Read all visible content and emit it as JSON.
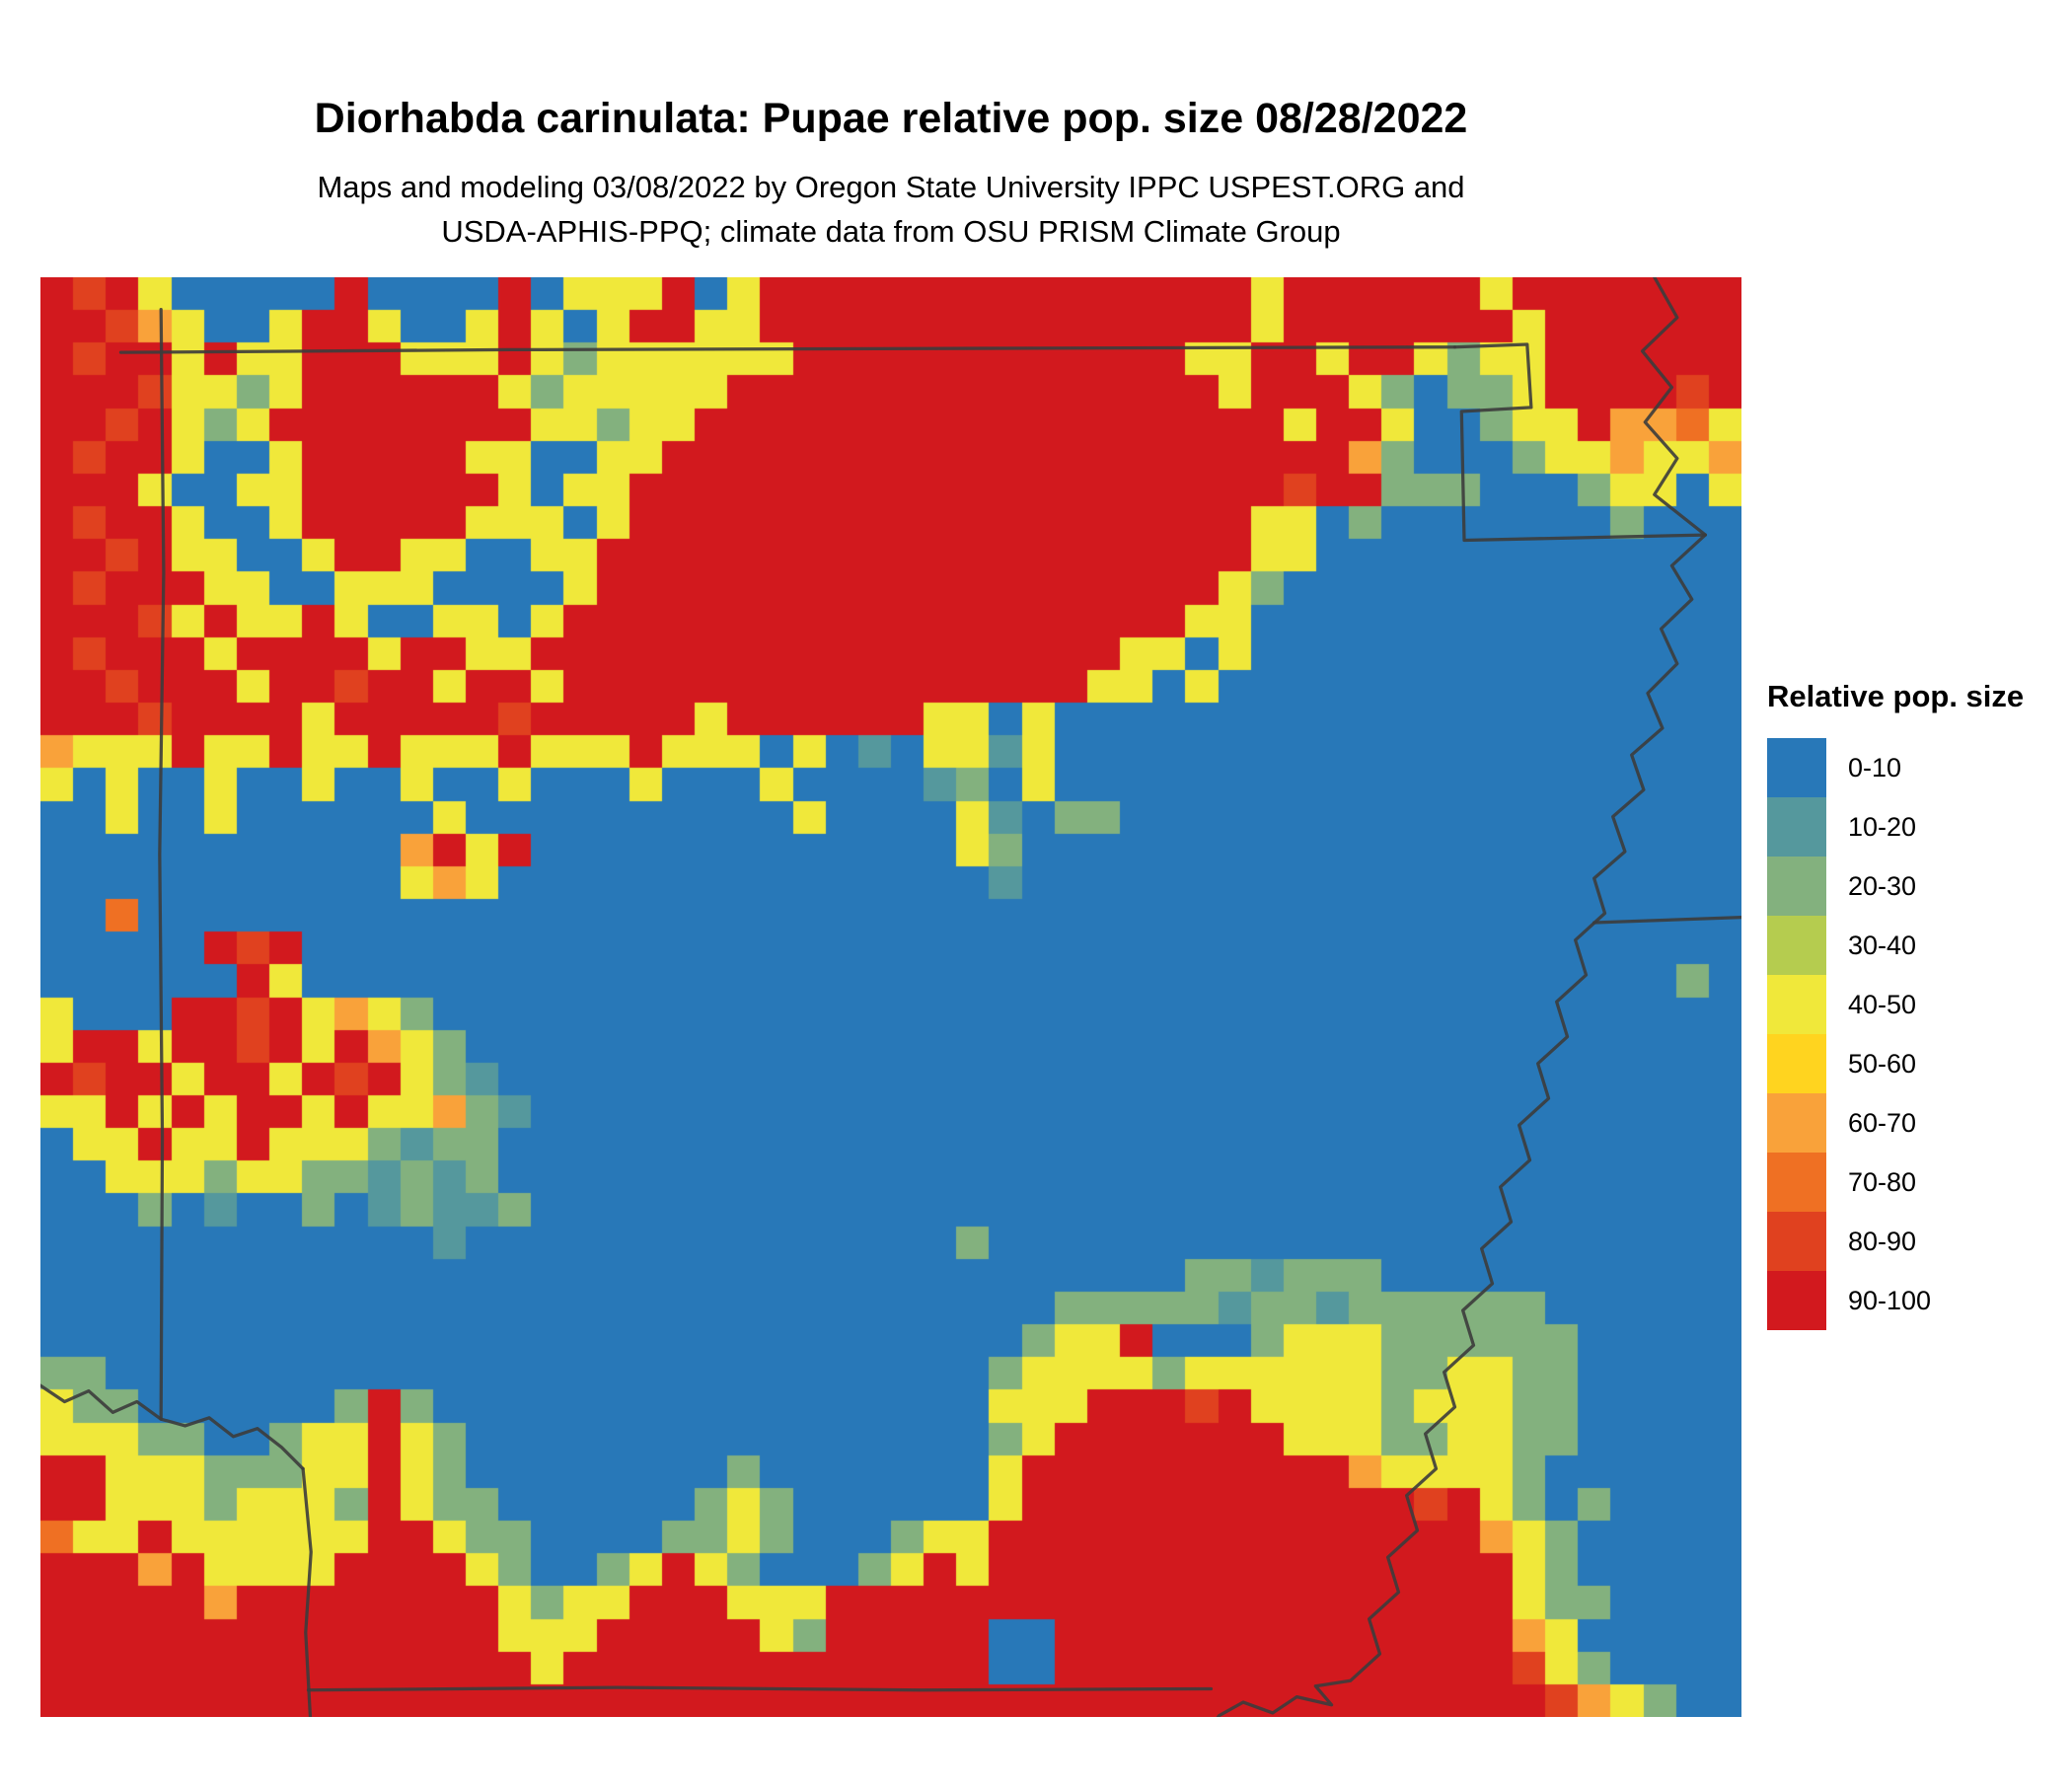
{
  "header": {
    "title": "Diorhabda carinulata: Pupae relative pop. size 08/28/2022",
    "subtitle_line1": "Maps and modeling 03/08/2022 by Oregon State University IPPC USPEST.ORG and",
    "subtitle_line2": "USDA-APHIS-PPQ; climate data from OSU PRISM Climate Group"
  },
  "map": {
    "border_color": "#3c3c3c",
    "grid": {
      "cols": 52,
      "palette": {
        "0": "#2878b8",
        "1": "#55989d",
        "2": "#83b17e",
        "3": "#b5cc4f",
        "4": "#f0e83a",
        "5": "#ffd41f",
        "6": "#f9a23a",
        "7": "#ef7023",
        "8": "#e0411f",
        "9": "#d2191e"
      },
      "rows": [
        "9894000009000090444904999999999999999499999949999999",
        "9986400499400494049944999999999999999499999994999999",
        "9899494499944494244444499999999999944994994244999999",
        "9998442499999942444449999999999999994999420224999989",
        "9989424999999994424499999999999999999949940024496674",
        "9899400499999440044999999999999999999999620002446446",
        "9994004499999940449999999999999999999989922200024404",
        "9899400499999444049999999999999999999440200000002000",
        "9989440049944004499999999999999999999440000000000000",
        "9899944004440000499999999999999999994200000000000000",
        "9998494494004404999999999999999999944000000000000000",
        "9899949999499449999999999999999994404000000000000000",
        "9989994998994994999999999999999944040000000000000000",
        "9998999949999989999949999994404000000000000000000000",
        "6444944944944494449444040104414000000000000000000000",
        "4040040040040040004000400001204000000000000000000000",
        "0040040000004000000000040000410220000000000000000000",
        "0000000000069490000000000000420000000000000000000000",
        "0000000000046400000000000000010000000000000000000000",
        "0070000000000000000000000000000000000000000000000000",
        "0000098900000000000000000000000000000000000000000000",
        "0000009400000000000000000000000000000000000000000020",
        "4000998946420000000000000000000000000000000000000000",
        "4994998949642000000000000000000000000000000000000000",
        "9899499498942100000000000000000000000000000000000000",
        "4494949949446210000000000000000000000000000000000000",
        "0449449444212200000000000000000000000000000000000000",
        "0044424422121200000000000000000000000000000000000000",
        "0002010020121120000000000000000000000000000000000000",
        "0000000000001000000000000000200000000000000000000000",
        "0000000000000000000000000000000000022122200000000000",
        "0000000000000000000000000000000222221221222222000000",
        "0000000000000000000000000000002449000244422222200000",
        "2200000000000000000000000000024444244444422442200000",
        "4220000002920000000000000000044499989444424442200000",
        "4442200244942000000000000000024999999944422442200000",
        "9944422244942000000002000000049999999999644442000000",
        "9944424442942200000024200000049999999999998942020000",
        "7449444444994220000224200024499999999999999964200000",
        "9996944449999420024942000249499999999999999994200000",
        "9999969999999942449994449999999999999999999994220000",
        "9999999999999944499999429999900999999999999996400000",
        "9999999999999994999999999999900999999999999998420000",
        "9999999999999999999999999999999999999999999999864200"
      ]
    },
    "borders": [
      [
        [
          60,
          56
        ],
        [
          350,
          54
        ],
        [
          700,
          53
        ],
        [
          1056,
          52
        ]
      ],
      [
        [
          1056,
          52
        ],
        [
          1110,
          50
        ],
        [
          1113,
          97
        ],
        [
          1061,
          100
        ],
        [
          1063,
          196
        ],
        [
          1243,
          192
        ]
      ],
      [
        [
          1205,
          0
        ],
        [
          1222,
          30
        ],
        [
          1196,
          55
        ],
        [
          1218,
          82
        ],
        [
          1198,
          108
        ],
        [
          1222,
          135
        ],
        [
          1205,
          162
        ],
        [
          1243,
          192
        ],
        [
          1218,
          215
        ],
        [
          1233,
          240
        ],
        [
          1210,
          262
        ],
        [
          1222,
          288
        ],
        [
          1200,
          310
        ],
        [
          1211,
          336
        ],
        [
          1188,
          356
        ],
        [
          1197,
          382
        ],
        [
          1174,
          402
        ],
        [
          1183,
          428
        ],
        [
          1160,
          448
        ],
        [
          1168,
          474
        ],
        [
          1146,
          494
        ],
        [
          1154,
          520
        ],
        [
          1132,
          540
        ],
        [
          1140,
          566
        ],
        [
          1118,
          586
        ],
        [
          1126,
          612
        ],
        [
          1104,
          632
        ],
        [
          1112,
          658
        ],
        [
          1090,
          678
        ],
        [
          1098,
          704
        ],
        [
          1076,
          724
        ],
        [
          1084,
          750
        ],
        [
          1062,
          770
        ],
        [
          1070,
          796
        ],
        [
          1048,
          816
        ],
        [
          1056,
          842
        ],
        [
          1034,
          862
        ],
        [
          1042,
          888
        ],
        [
          1020,
          908
        ],
        [
          1028,
          934
        ],
        [
          1006,
          954
        ],
        [
          1014,
          980
        ],
        [
          992,
          1000
        ],
        [
          1000,
          1026
        ],
        [
          978,
          1046
        ],
        [
          952,
          1050
        ],
        [
          964,
          1064
        ],
        [
          938,
          1058
        ],
        [
          920,
          1070
        ],
        [
          898,
          1062
        ],
        [
          880,
          1072
        ],
        [
          872,
          1083
        ]
      ],
      [
        [
          1160,
          481
        ],
        [
          1270,
          477
        ]
      ],
      [
        [
          90,
          24
        ],
        [
          92,
          220
        ],
        [
          89,
          430
        ],
        [
          91,
          640
        ],
        [
          90,
          851
        ]
      ],
      [
        [
          0,
          826
        ],
        [
          18,
          838
        ],
        [
          36,
          830
        ],
        [
          54,
          846
        ],
        [
          72,
          838
        ],
        [
          90,
          851
        ],
        [
          108,
          856
        ],
        [
          126,
          850
        ],
        [
          144,
          864
        ],
        [
          162,
          858
        ],
        [
          180,
          872
        ],
        [
          196,
          888
        ]
      ],
      [
        [
          196,
          888
        ],
        [
          202,
          950
        ],
        [
          198,
          1010
        ],
        [
          202,
          1083
        ]
      ],
      [
        [
          200,
          1053
        ],
        [
          430,
          1051
        ],
        [
          660,
          1053
        ],
        [
          874,
          1052
        ]
      ]
    ]
  },
  "legend": {
    "title": "Relative pop. size",
    "items": [
      {
        "label": "0-10",
        "color": "#2878b8"
      },
      {
        "label": "10-20",
        "color": "#55989d"
      },
      {
        "label": "20-30",
        "color": "#83b17e"
      },
      {
        "label": "30-40",
        "color": "#b5cc4f"
      },
      {
        "label": "40-50",
        "color": "#f0e83a"
      },
      {
        "label": "50-60",
        "color": "#ffd41f"
      },
      {
        "label": "60-70",
        "color": "#f9a23a"
      },
      {
        "label": "70-80",
        "color": "#ef7023"
      },
      {
        "label": "80-90",
        "color": "#e0411f"
      },
      {
        "label": "90-100",
        "color": "#d2191e"
      }
    ]
  }
}
